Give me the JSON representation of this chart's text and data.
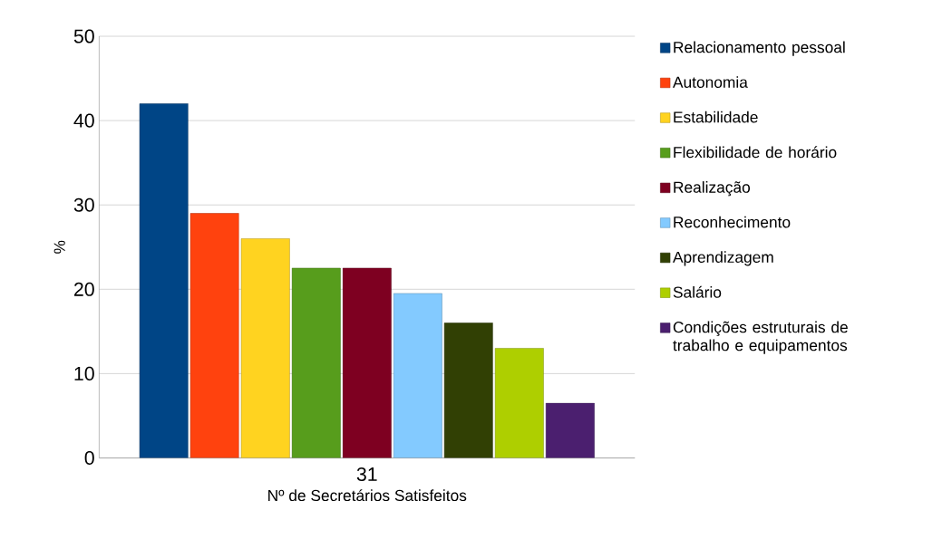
{
  "chart_data": {
    "type": "bar",
    "xlabel": "Nº de Secretários Satisfeitos",
    "ylabel": "%",
    "categories": [
      "31"
    ],
    "series": [
      {
        "name": "Relacionamento pessoal",
        "color": "#004586",
        "values": [
          42
        ]
      },
      {
        "name": "Autonomia",
        "color": "#ff420e",
        "values": [
          29
        ]
      },
      {
        "name": "Estabilidade",
        "color": "#ffd320",
        "values": [
          26
        ]
      },
      {
        "name": "Flexibilidade de horário",
        "color": "#579d1c",
        "values": [
          22.5
        ]
      },
      {
        "name": "Realização",
        "color": "#7e0021",
        "values": [
          22.5
        ]
      },
      {
        "name": "Reconhecimento",
        "color": "#83caff",
        "values": [
          19.5
        ]
      },
      {
        "name": "Aprendizagem",
        "color": "#314004",
        "values": [
          16
        ]
      },
      {
        "name": "Salário",
        "color": "#aecf00",
        "values": [
          13
        ]
      },
      {
        "name": "Condições estruturais de trabalho e equipamentos",
        "color": "#4b1f6f",
        "values": [
          6.5
        ]
      }
    ],
    "ylim": [
      0,
      50
    ],
    "yticks": [
      0,
      10,
      20,
      30,
      40,
      50
    ],
    "grid": "y",
    "legend": "right"
  }
}
